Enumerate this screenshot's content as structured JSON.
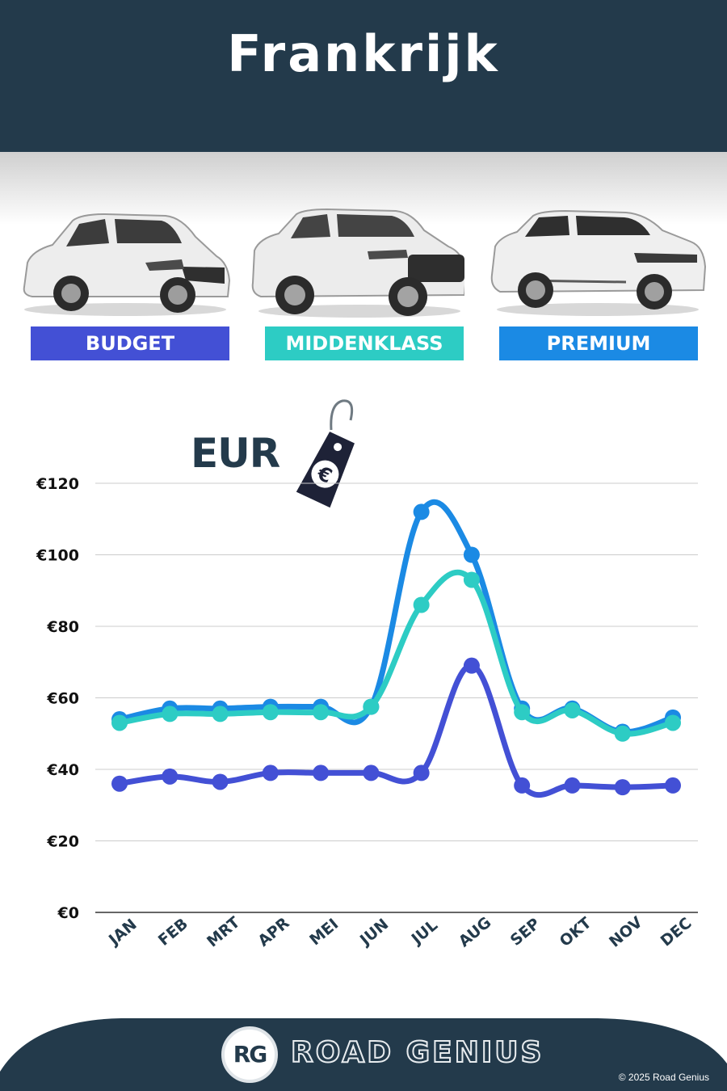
{
  "header": {
    "title": "Frankrijk"
  },
  "categories": [
    {
      "label": "BUDGET",
      "color": "#4350d5",
      "car_icon": "hatchback-icon"
    },
    {
      "label": "MIDDENKLASS",
      "color": "#2dccc4",
      "car_icon": "suv-icon"
    },
    {
      "label": "PREMIUM",
      "color": "#1b8ae4",
      "car_icon": "luxury-suv-icon"
    }
  ],
  "currency": {
    "label": "EUR",
    "symbol": "€",
    "icon": "euro-price-tag-icon"
  },
  "chart_data": {
    "type": "line",
    "categories": [
      "JAN",
      "FEB",
      "MRT",
      "APR",
      "MEI",
      "JUN",
      "JUL",
      "AUG",
      "SEP",
      "OKT",
      "NOV",
      "DEC"
    ],
    "yticks": [
      "€0",
      "€20",
      "€40",
      "€60",
      "€80",
      "€100",
      "€120"
    ],
    "ylim": [
      0,
      120
    ],
    "grid": true,
    "series": [
      {
        "name": "PREMIUM",
        "color": "#1b8ae4",
        "values": [
          54,
          57,
          57,
          57.5,
          57.5,
          57.5,
          112,
          100,
          57,
          57,
          50.5,
          54.5
        ]
      },
      {
        "name": "MIDDENKLASS",
        "color": "#2dccc4",
        "values": [
          53,
          55.5,
          55.5,
          56,
          56,
          57.5,
          86,
          93,
          56,
          56.5,
          50,
          53
        ]
      },
      {
        "name": "BUDGET",
        "color": "#4350d5",
        "values": [
          36,
          38,
          36.5,
          39,
          39,
          39,
          39,
          69,
          35.5,
          35.5,
          35,
          35.5
        ]
      }
    ]
  },
  "footer": {
    "badge": "RG",
    "brand": "ROAD GENIUS",
    "copyright": "© 2025 Road Genius",
    "background": "#233a4b"
  }
}
